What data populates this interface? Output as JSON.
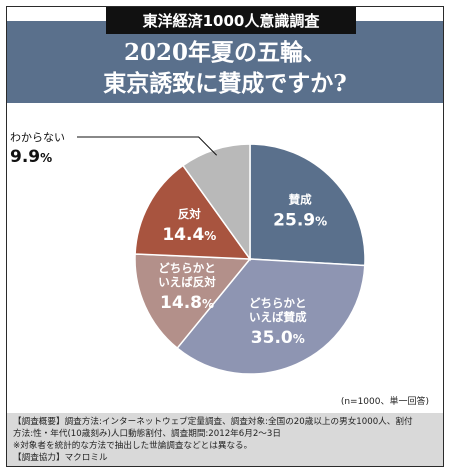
{
  "tag": "東洋経済1000人意識調査",
  "headline": [
    "2020年夏の五輪、",
    "東京誘致に賛成ですか?"
  ],
  "chart_data": {
    "type": "pie",
    "slices": [
      {
        "lines": [
          "賛成"
        ],
        "value": 25.9,
        "color": "#5a708c",
        "text_color": "#ffffff"
      },
      {
        "lines": [
          "どちらかと",
          "いえば賛成"
        ],
        "value": 35.0,
        "color": "#8e95b2",
        "text_color": "#ffffff"
      },
      {
        "lines": [
          "どちらかと",
          "いえば反対"
        ],
        "value": 14.8,
        "color": "#b3908a",
        "text_color": "#ffffff"
      },
      {
        "lines": [
          "反対"
        ],
        "value": 14.4,
        "color": "#a8543f",
        "text_color": "#ffffff"
      },
      {
        "lines": [
          "わからない"
        ],
        "value": 9.9,
        "color": "#b9b9b9",
        "text_color": "#111111",
        "label_outside": true
      }
    ],
    "unit": "%",
    "start_angle_deg": 0,
    "direction": "clockwise"
  },
  "note": "(n=1000、単一回答)",
  "survey": [
    "【調査概要】調査方法:インターネットウェブ定量調査、調査対象:全国の20歳以上の男女1000人、割付",
    "方法:性・年代(10歳刻み)人口動態割付、調査期間:2012年6月2〜3日",
    "※対象者を統計的な方法で抽出した世論調査などとは異なる。",
    "【調査協力】マクロミル"
  ]
}
